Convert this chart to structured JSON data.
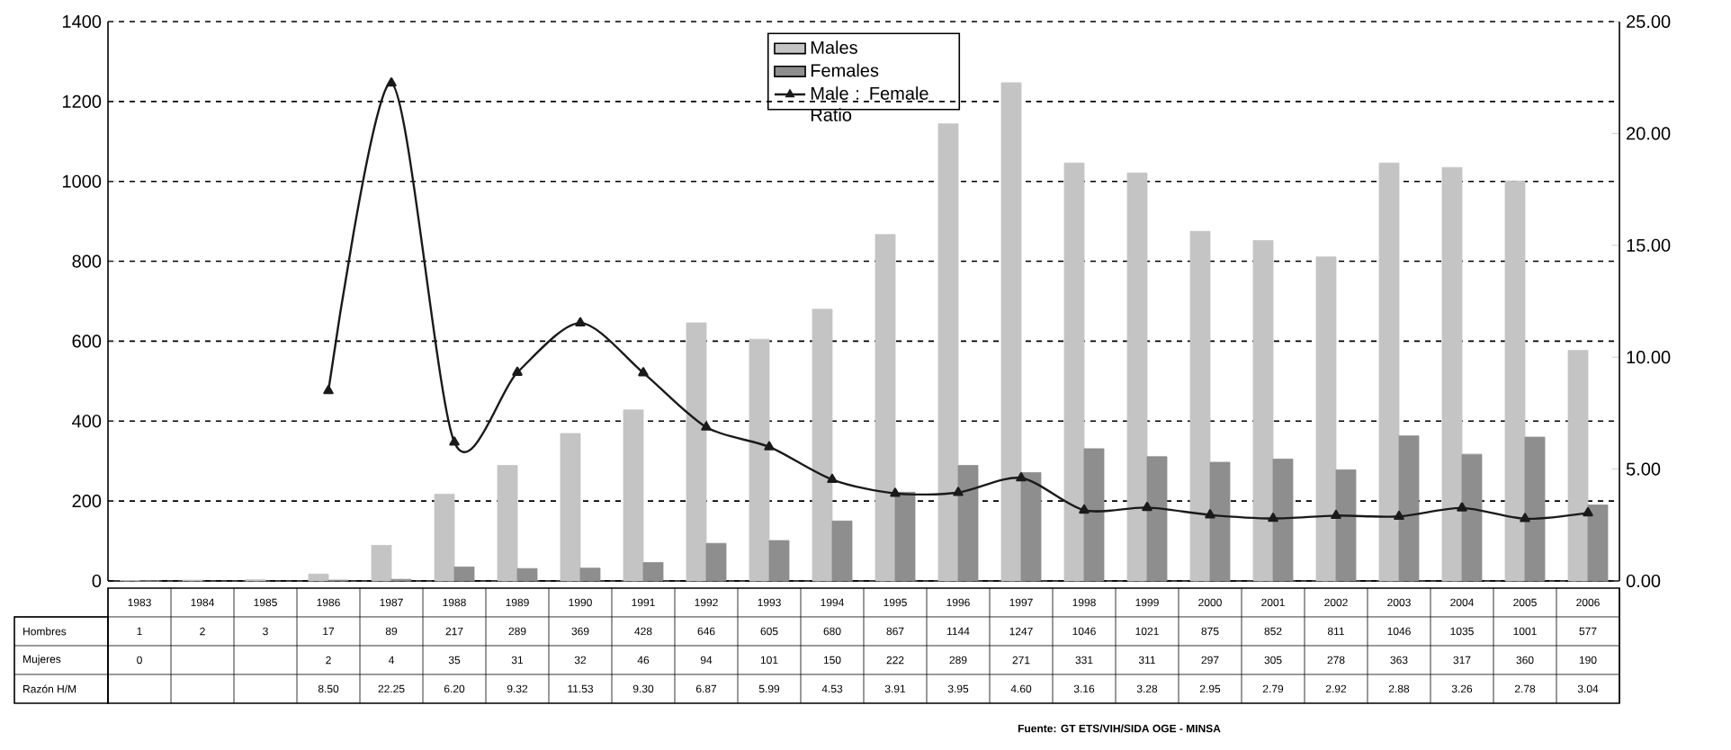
{
  "chart_data": {
    "type": "bar",
    "categories": [
      "1983",
      "1984",
      "1985",
      "1986",
      "1987",
      "1988",
      "1989",
      "1990",
      "1991",
      "1992",
      "1993",
      "1994",
      "1995",
      "1996",
      "1997",
      "1998",
      "1999",
      "2000",
      "2001",
      "2002",
      "2003",
      "2004",
      "2005",
      "2006"
    ],
    "series": [
      {
        "name": "Males",
        "color": "#c4c4c4",
        "values": [
          1,
          2,
          3,
          17,
          89,
          217,
          289,
          369,
          428,
          646,
          605,
          680,
          867,
          1144,
          1247,
          1046,
          1021,
          875,
          852,
          811,
          1046,
          1035,
          1001,
          577
        ]
      },
      {
        "name": "Females",
        "color": "#8e8e8e",
        "values": [
          0,
          null,
          null,
          2,
          4,
          35,
          31,
          32,
          46,
          94,
          101,
          150,
          222,
          289,
          271,
          331,
          311,
          297,
          305,
          278,
          363,
          317,
          360,
          190
        ]
      },
      {
        "name": "Male : Female Ratio",
        "type": "line",
        "axis": "y2",
        "color": "#1a1a1a",
        "marker": "triangle",
        "line_style": "solid",
        "values": [
          null,
          null,
          null,
          8.5,
          22.25,
          6.2,
          9.32,
          11.53,
          9.3,
          6.87,
          5.99,
          4.53,
          3.91,
          3.95,
          4.6,
          3.16,
          3.28,
          2.95,
          2.79,
          2.92,
          2.88,
          3.26,
          2.78,
          3.04
        ],
        "value_labels": [
          null,
          null,
          null,
          "8.50",
          "22.25",
          "6.20",
          "9.32",
          "11.53",
          "9.30",
          "6.87",
          "5.99",
          "4.53",
          "3.91",
          "3.95",
          "4.60",
          "3.16",
          "3.28",
          "2.95",
          "2.79",
          "2.92",
          "2.88",
          "3.26",
          "2.78",
          "3.04"
        ]
      }
    ],
    "ylim": [
      0,
      1400
    ],
    "yticks": [
      0,
      200,
      400,
      600,
      800,
      1000,
      1200,
      1400
    ],
    "y2lim": [
      0,
      25
    ],
    "y2ticks": [
      {
        "value": 0,
        "label": "0.00"
      },
      {
        "value": 5,
        "label": "5.00"
      },
      {
        "value": 10,
        "label": "10.00"
      },
      {
        "value": 15,
        "label": "15.00"
      },
      {
        "value": 20,
        "label": "20.00"
      },
      {
        "value": 25,
        "label": "25.00"
      }
    ],
    "grid": "y",
    "legend": "top",
    "data_labels": true,
    "annotations": [
      "Hombres",
      "Mujeres",
      "Razón H/M",
      "Fuente: GT ETS/VIH/SIDA OGE - MINSA"
    ]
  }
}
